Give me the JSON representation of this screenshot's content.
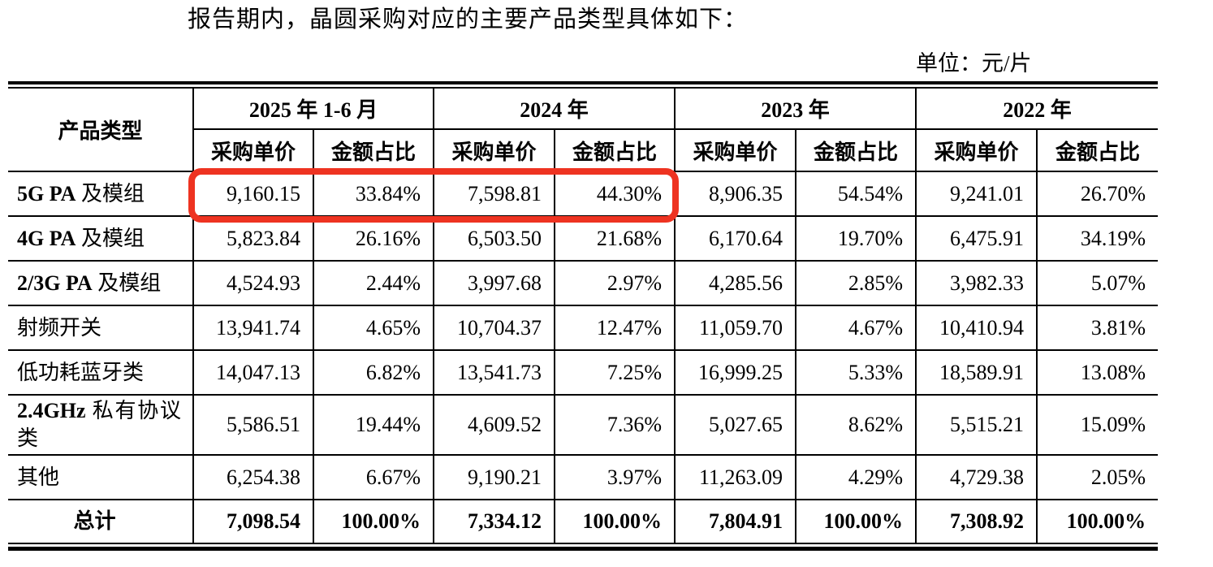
{
  "page": {
    "intro_text": "报告期内，晶圆采购对应的主要产品类型具体如下：",
    "unit_label": "单位：元/片"
  },
  "table": {
    "col1_header": "产品类型",
    "period_headers": [
      "2025 年 1-6 月",
      "2024 年",
      "2023 年",
      "2022 年"
    ],
    "sub_headers": [
      "采购单价",
      "金额占比"
    ],
    "rows": [
      {
        "label_latin": "5G PA",
        "label_cn": "及模组",
        "wrap": false,
        "total": false,
        "values": [
          "9,160.15",
          "33.84%",
          "7,598.81",
          "44.30%",
          "8,906.35",
          "54.54%",
          "9,241.01",
          "26.70%"
        ]
      },
      {
        "label_latin": "4G PA",
        "label_cn": "及模组",
        "wrap": false,
        "total": false,
        "values": [
          "5,823.84",
          "26.16%",
          "6,503.50",
          "21.68%",
          "6,170.64",
          "19.70%",
          "6,475.91",
          "34.19%"
        ]
      },
      {
        "label_latin": "2/3G PA",
        "label_cn": "及模组",
        "wrap": false,
        "total": false,
        "values": [
          "4,524.93",
          "2.44%",
          "3,997.68",
          "2.97%",
          "4,285.56",
          "2.85%",
          "3,982.33",
          "5.07%"
        ]
      },
      {
        "label_latin": "",
        "label_cn": "射频开关",
        "wrap": false,
        "total": false,
        "values": [
          "13,941.74",
          "4.65%",
          "10,704.37",
          "12.47%",
          "11,059.70",
          "4.67%",
          "10,410.94",
          "3.81%"
        ]
      },
      {
        "label_latin": "",
        "label_cn": "低功耗蓝牙类",
        "wrap": false,
        "total": false,
        "values": [
          "14,047.13",
          "6.82%",
          "13,541.73",
          "7.25%",
          "16,999.25",
          "5.33%",
          "18,589.91",
          "13.08%"
        ]
      },
      {
        "label_latin": "2.4GHz",
        "label_cn": "私有协议类",
        "wrap": true,
        "total": false,
        "values": [
          "5,586.51",
          "19.44%",
          "4,609.52",
          "7.36%",
          "5,027.65",
          "8.62%",
          "5,515.21",
          "15.09%"
        ]
      },
      {
        "label_latin": "",
        "label_cn": "其他",
        "wrap": false,
        "total": false,
        "values": [
          "6,254.38",
          "6.67%",
          "9,190.21",
          "3.97%",
          "11,263.09",
          "4.29%",
          "4,729.38",
          "2.05%"
        ]
      },
      {
        "label_latin": "",
        "label_cn": "总计",
        "wrap": false,
        "total": true,
        "values": [
          "7,098.54",
          "100.00%",
          "7,334.12",
          "100.00%",
          "7,804.91",
          "100.00%",
          "7,308.92",
          "100.00%"
        ]
      }
    ]
  },
  "highlight": {
    "color": "#ee3321",
    "covers_row": "5G PA 及模组",
    "covers_values": [
      "9,160.15",
      "33.84%",
      "7,598.81",
      "44.30%"
    ]
  }
}
